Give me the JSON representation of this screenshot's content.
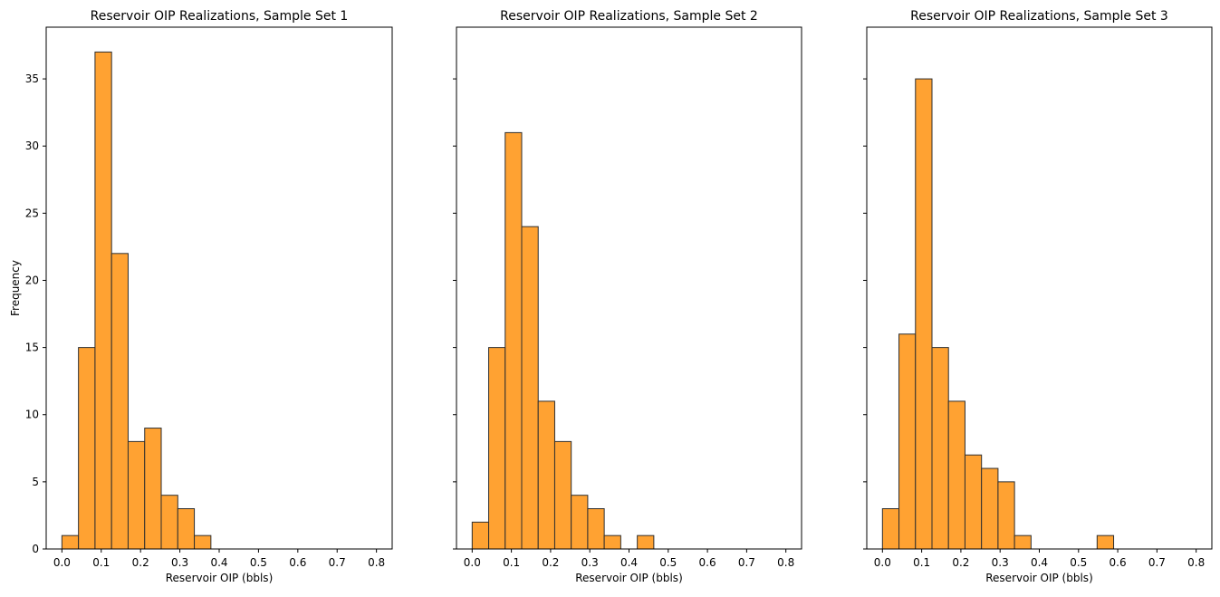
{
  "colors": {
    "bar_fill": "#ffa232",
    "bar_edge": "#2f2f2f",
    "axis": "#000000",
    "background": "#ffffff"
  },
  "chart_data": [
    {
      "type": "bar",
      "title": "Reservoir OIP Realizations, Sample Set 1",
      "xlabel": "Reservoir OIP (bbls)",
      "ylabel": "Frequency",
      "xlim": [
        -0.04,
        0.84
      ],
      "ylim": [
        0,
        38.85
      ],
      "xticks": [
        "0.0",
        "0.1",
        "0.2",
        "0.3",
        "0.4",
        "0.5",
        "0.6",
        "0.7",
        "0.8"
      ],
      "yticks": [
        "0",
        "5",
        "10",
        "15",
        "20",
        "25",
        "30",
        "35"
      ],
      "show_ytick_labels": true,
      "bin_edges": [
        0.0,
        0.0421,
        0.0842,
        0.1263,
        0.1684,
        0.2105,
        0.2526,
        0.2947,
        0.3368,
        0.3789,
        0.4211,
        0.4632,
        0.5053,
        0.5474,
        0.5895,
        0.6316,
        0.6737,
        0.7158,
        0.7579,
        0.8
      ],
      "values": [
        1,
        15,
        37,
        22,
        8,
        9,
        4,
        3,
        1,
        0,
        0,
        0,
        0,
        0,
        0,
        0,
        0,
        0,
        0
      ],
      "grid": false
    },
    {
      "type": "bar",
      "title": "Reservoir OIP Realizations, Sample Set 2",
      "xlabel": "Reservoir OIP (bbls)",
      "ylabel": "",
      "xlim": [
        -0.04,
        0.84
      ],
      "ylim": [
        0,
        38.85
      ],
      "xticks": [
        "0.0",
        "0.1",
        "0.2",
        "0.3",
        "0.4",
        "0.5",
        "0.6",
        "0.7",
        "0.8"
      ],
      "yticks": [
        "0",
        "5",
        "10",
        "15",
        "20",
        "25",
        "30",
        "35"
      ],
      "show_ytick_labels": false,
      "bin_edges": [
        0.0,
        0.0421,
        0.0842,
        0.1263,
        0.1684,
        0.2105,
        0.2526,
        0.2947,
        0.3368,
        0.3789,
        0.4211,
        0.4632,
        0.5053,
        0.5474,
        0.5895,
        0.6316,
        0.6737,
        0.7158,
        0.7579,
        0.8
      ],
      "values": [
        2,
        15,
        31,
        24,
        11,
        8,
        4,
        3,
        1,
        0,
        1,
        0,
        0,
        0,
        0,
        0,
        0,
        0,
        0
      ],
      "grid": false
    },
    {
      "type": "bar",
      "title": "Reservoir OIP Realizations, Sample Set 3",
      "xlabel": "Reservoir OIP (bbls)",
      "ylabel": "",
      "xlim": [
        -0.04,
        0.84
      ],
      "ylim": [
        0,
        38.85
      ],
      "xticks": [
        "0.0",
        "0.1",
        "0.2",
        "0.3",
        "0.4",
        "0.5",
        "0.6",
        "0.7",
        "0.8"
      ],
      "yticks": [
        "0",
        "5",
        "10",
        "15",
        "20",
        "25",
        "30",
        "35"
      ],
      "show_ytick_labels": false,
      "bin_edges": [
        0.0,
        0.0421,
        0.0842,
        0.1263,
        0.1684,
        0.2105,
        0.2526,
        0.2947,
        0.3368,
        0.3789,
        0.4211,
        0.4632,
        0.5053,
        0.5474,
        0.5895,
        0.6316,
        0.6737,
        0.7158,
        0.7579,
        0.8
      ],
      "values": [
        3,
        16,
        35,
        15,
        11,
        7,
        6,
        5,
        1,
        0,
        0,
        0,
        0,
        1,
        0,
        0,
        0,
        0,
        0
      ],
      "grid": false
    }
  ]
}
